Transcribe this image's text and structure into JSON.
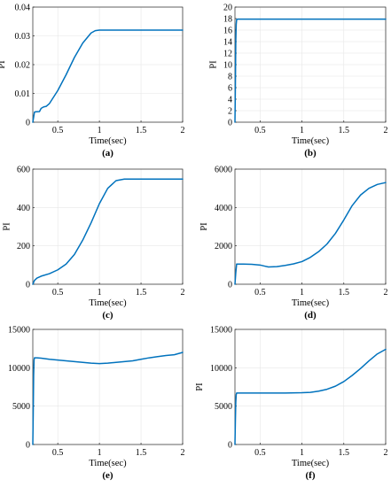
{
  "style": {
    "line_color": "#0072BD"
  },
  "chart_data": [
    {
      "type": "line",
      "caption": "(a)",
      "xlabel": "Time(sec)",
      "ylabel": "PI",
      "xlim": [
        0.2,
        2
      ],
      "ylim": [
        0,
        0.04
      ],
      "xticks": [
        0.5,
        1,
        1.5,
        2
      ],
      "xtick_labels": [
        "0.5",
        "1",
        "1.5",
        "2"
      ],
      "yticks": [
        0,
        0.01,
        0.02,
        0.03,
        0.04
      ],
      "ytick_labels": [
        "0",
        "0.01",
        "0.02",
        "0.03",
        "0.04"
      ],
      "grid": true,
      "series": [
        {
          "x": [
            0.2,
            0.22,
            0.23,
            0.28,
            0.3,
            0.33,
            0.36,
            0.4,
            0.5,
            0.6,
            0.7,
            0.8,
            0.9,
            0.95,
            1.0,
            1.1,
            1.3,
            1.5,
            1.8,
            2.0
          ],
          "y": [
            0.0,
            0.0035,
            0.0036,
            0.0037,
            0.0048,
            0.0053,
            0.0055,
            0.0065,
            0.011,
            0.0165,
            0.0225,
            0.0275,
            0.031,
            0.0318,
            0.032,
            0.032,
            0.032,
            0.032,
            0.032,
            0.032
          ]
        }
      ]
    },
    {
      "type": "line",
      "caption": "(b)",
      "xlabel": "Time(sec)",
      "ylabel": "PI",
      "xlim": [
        0.2,
        2
      ],
      "ylim": [
        0,
        20
      ],
      "xticks": [
        0.5,
        1,
        1.5,
        2
      ],
      "xtick_labels": [
        "0.5",
        "1",
        "1.5",
        "2"
      ],
      "yticks": [
        0,
        2,
        4,
        6,
        8,
        10,
        12,
        14,
        16,
        18,
        20
      ],
      "ytick_labels": [
        "0",
        "2",
        "4",
        "6",
        "8",
        "10",
        "12",
        "14",
        "16",
        "18",
        "20"
      ],
      "grid": true,
      "series": [
        {
          "x": [
            0.2,
            0.205,
            0.21,
            0.215,
            0.22,
            0.23,
            0.5,
            1.0,
            1.5,
            2.0
          ],
          "y": [
            0.0,
            6.0,
            14.0,
            17.0,
            17.8,
            17.9,
            17.9,
            17.9,
            17.9,
            17.9
          ]
        }
      ]
    },
    {
      "type": "line",
      "caption": "(c)",
      "xlabel": "Time(sec)",
      "ylabel": "PI",
      "xlim": [
        0.2,
        2
      ],
      "ylim": [
        0,
        600
      ],
      "xticks": [
        0.5,
        1,
        1.5,
        2
      ],
      "xtick_labels": [
        "0.5",
        "1",
        "1.5",
        "2"
      ],
      "yticks": [
        0,
        200,
        400,
        600
      ],
      "ytick_labels": [
        "0",
        "200",
        "400",
        "600"
      ],
      "grid": true,
      "series": [
        {
          "x": [
            0.2,
            0.22,
            0.25,
            0.3,
            0.4,
            0.5,
            0.6,
            0.7,
            0.8,
            0.9,
            1.0,
            1.1,
            1.2,
            1.3,
            1.5,
            1.7,
            2.0
          ],
          "y": [
            0,
            20,
            32,
            42,
            55,
            75,
            105,
            155,
            230,
            320,
            420,
            500,
            540,
            548,
            548,
            548,
            548
          ]
        }
      ]
    },
    {
      "type": "line",
      "caption": "(d)",
      "xlabel": "Time(sec)",
      "ylabel": "PI",
      "xlim": [
        0.2,
        2
      ],
      "ylim": [
        0,
        6000
      ],
      "xticks": [
        0.5,
        1,
        1.5,
        2
      ],
      "xtick_labels": [
        "0.5",
        "1",
        "1.5",
        "2"
      ],
      "yticks": [
        0,
        2000,
        4000,
        6000
      ],
      "ytick_labels": [
        "0",
        "2000",
        "4000",
        "6000"
      ],
      "grid": true,
      "series": [
        {
          "x": [
            0.2,
            0.21,
            0.22,
            0.3,
            0.4,
            0.5,
            0.55,
            0.6,
            0.7,
            0.8,
            0.9,
            1.0,
            1.1,
            1.2,
            1.3,
            1.4,
            1.5,
            1.6,
            1.7,
            1.8,
            1.9,
            2.0
          ],
          "y": [
            0,
            600,
            1050,
            1050,
            1040,
            1000,
            950,
            900,
            920,
            980,
            1060,
            1180,
            1400,
            1700,
            2100,
            2650,
            3350,
            4100,
            4650,
            5000,
            5200,
            5300
          ]
        }
      ]
    },
    {
      "type": "line",
      "caption": "(e)",
      "xlabel": "Time(sec)",
      "ylabel": "PI",
      "xlim": [
        0.2,
        2
      ],
      "ylim": [
        0,
        15000
      ],
      "xticks": [
        0.5,
        1,
        1.5,
        2
      ],
      "xtick_labels": [
        "0.5",
        "1",
        "1.5",
        "2"
      ],
      "yticks": [
        0,
        5000,
        10000,
        15000
      ],
      "ytick_labels": [
        "0",
        "5000",
        "10000",
        "15000"
      ],
      "grid": true,
      "series": [
        {
          "x": [
            0.2,
            0.205,
            0.21,
            0.215,
            0.22,
            0.25,
            0.3,
            0.4,
            0.5,
            0.6,
            0.7,
            0.8,
            0.9,
            1.0,
            1.1,
            1.2,
            1.3,
            1.4,
            1.5,
            1.6,
            1.7,
            1.8,
            1.9,
            2.0
          ],
          "y": [
            0,
            4000,
            9000,
            11000,
            11300,
            11300,
            11250,
            11100,
            11000,
            10900,
            10800,
            10700,
            10600,
            10550,
            10600,
            10700,
            10800,
            10900,
            11100,
            11300,
            11450,
            11600,
            11700,
            12000
          ]
        }
      ]
    },
    {
      "type": "line",
      "caption": "(f)",
      "xlabel": "Time(sec)",
      "ylabel": "PI",
      "xlim": [
        0.2,
        2
      ],
      "ylim": [
        0,
        15000
      ],
      "xticks": [
        0.5,
        1,
        1.5,
        2
      ],
      "xtick_labels": [
        "0.5",
        "1",
        "1.5",
        "2"
      ],
      "yticks": [
        0,
        5000,
        10000,
        15000
      ],
      "ytick_labels": [
        "0",
        "5000",
        "10000",
        "15000"
      ],
      "grid": true,
      "series": [
        {
          "x": [
            0.2,
            0.205,
            0.21,
            0.215,
            0.22,
            0.3,
            0.5,
            0.8,
            1.0,
            1.1,
            1.2,
            1.3,
            1.4,
            1.5,
            1.6,
            1.7,
            1.8,
            1.9,
            2.0
          ],
          "y": [
            0,
            3000,
            5500,
            6500,
            6700,
            6700,
            6700,
            6700,
            6750,
            6800,
            6950,
            7200,
            7600,
            8200,
            9000,
            9900,
            10900,
            11800,
            12400
          ]
        }
      ]
    }
  ]
}
